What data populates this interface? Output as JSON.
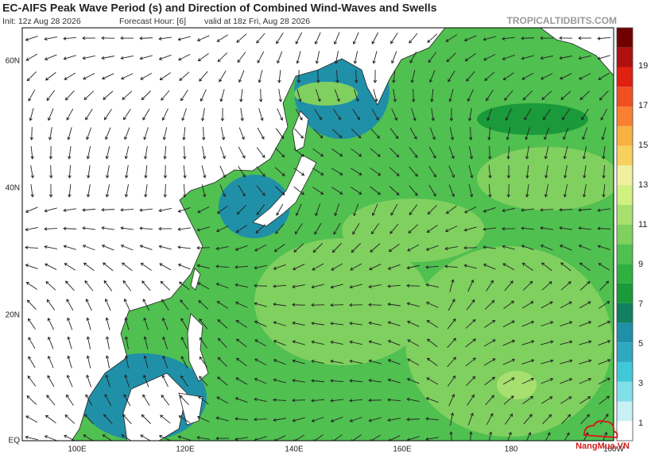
{
  "header": {
    "title": "EC-AIFS Peak Wave Period (s) and Direction of Combined Wind-Waves and Swells",
    "init": "Init: 12z Aug 28 2026",
    "forecast_hour": "Forecast Hour: [6]",
    "valid": "valid at 18z Fri, Aug 28 2026",
    "site": "TROPICALTIDBITS.COM"
  },
  "map": {
    "lat_labels": [
      "60N",
      "40N",
      "20N",
      "EQ"
    ],
    "lon_labels": [
      "100E",
      "120E",
      "140E",
      "160E",
      "180",
      "160W"
    ]
  },
  "colorbar": {
    "labels": [
      "1",
      "3",
      "5",
      "7",
      "9",
      "11",
      "13",
      "15",
      "17",
      "19"
    ],
    "colors": [
      "#ffffff",
      "#c8f0f5",
      "#80e0e8",
      "#40c8d8",
      "#30a8c0",
      "#2090a8",
      "#108060",
      "#1a9a3a",
      "#30b040",
      "#50c050",
      "#80d060",
      "#a8e070",
      "#d0f080",
      "#f0f0a0",
      "#f8d060",
      "#f8b040",
      "#f88030",
      "#f05020",
      "#e02010",
      "#b01010",
      "#700000"
    ]
  },
  "watermark": "NangMua.VN"
}
